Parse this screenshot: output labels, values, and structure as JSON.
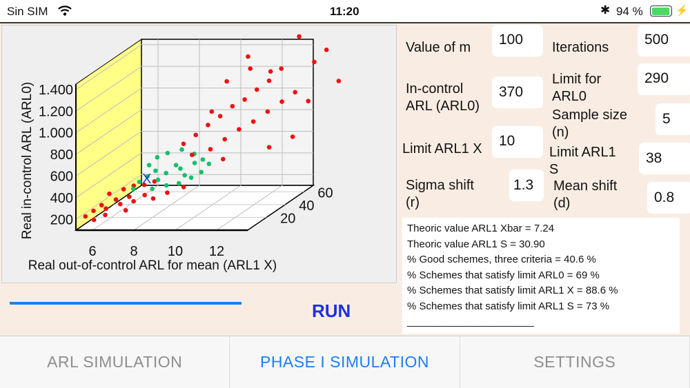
{
  "status": {
    "carrier": "Sin SIM",
    "time": "11:20",
    "battery": "94 %",
    "battery_level": 0.94
  },
  "form": {
    "value_m": {
      "label": "Value of m",
      "value": "100"
    },
    "iterations": {
      "label": "Iterations",
      "value": "500"
    },
    "arl0": {
      "label1": "In-control",
      "label2": "ARL (ARL0)",
      "value": "370"
    },
    "limit_arl0": {
      "label1": "Limit for",
      "label2": "ARL0",
      "value": "290"
    },
    "sample_size": {
      "label1": "Sample size",
      "label2": "(n)",
      "value": "5"
    },
    "limit_arl1x": {
      "label": "Limit ARL1 X",
      "value": "10"
    },
    "limit_arl1s": {
      "label1": "Limit  ARL1",
      "label2": "S",
      "value": "38"
    },
    "sigma_shift": {
      "label1": "Sigma shift",
      "label2": "(r)",
      "value": "1.3"
    },
    "mean_shift": {
      "label1": "Mean shift",
      "label2": "(d)",
      "value": "0.8"
    }
  },
  "results": [
    "Theoric value ARL1 Xbar = 7.24",
    "Theoric value ARL1 S = 30.90",
    "% Good schemes, three criteria = 40.6 %",
    "% Schemes that satisfy limit ARL0 = 69 %",
    "% Schemes that satisfy limit ARL1 X = 88.6 %",
    "% Schemes that satisfy limit ARL1 S = 73 %",
    "______________________"
  ],
  "progress": 1.0,
  "run_label": "RUN",
  "tabs": [
    "ARL SIMULATION",
    "PHASE I SIMULATION",
    "SETTINGS"
  ],
  "active_tab": 1,
  "chart_data": {
    "type": "scatter",
    "title": "",
    "xlabel": "Real out-of-control ARL for mean (ARL1 X)",
    "zlabel": "Real in-control ARL (ARL0)",
    "x_ticks": [
      "6",
      "8",
      "10",
      "12"
    ],
    "z_ticks": [
      "200",
      "400",
      "600",
      "800",
      "1.000",
      "1.200",
      "1.400"
    ],
    "depth_ticks": [
      "20",
      "40",
      "60"
    ],
    "marker_label": "X",
    "colors": {
      "good": "#13c06a",
      "bad": "#f01010",
      "marker": "#1f3fcf",
      "wall": "#ffff88"
    },
    "points": [
      [
        5.3,
        8,
        180,
        0
      ],
      [
        5.6,
        10,
        220,
        0
      ],
      [
        5.9,
        12,
        260,
        0
      ],
      [
        6.2,
        10,
        240,
        0
      ],
      [
        6.5,
        14,
        300,
        0
      ],
      [
        6.8,
        12,
        270,
        0
      ],
      [
        7.1,
        15,
        320,
        0
      ],
      [
        7.4,
        13,
        290,
        0
      ],
      [
        6.0,
        18,
        330,
        0
      ],
      [
        6.6,
        20,
        360,
        0
      ],
      [
        7.0,
        22,
        380,
        0
      ],
      [
        7.8,
        16,
        330,
        0
      ],
      [
        8.3,
        14,
        310,
        0
      ],
      [
        8.8,
        18,
        340,
        0
      ],
      [
        5.8,
        6,
        160,
        0
      ],
      [
        6.3,
        7,
        200,
        0
      ],
      [
        7.2,
        9,
        230,
        0
      ],
      [
        7.6,
        20,
        400,
        0
      ],
      [
        8.0,
        22,
        420,
        0
      ],
      [
        9.5,
        20,
        380,
        0
      ],
      [
        6.8,
        26,
        330,
        1
      ],
      [
        7.0,
        28,
        380,
        1
      ],
      [
        7.3,
        30,
        420,
        1
      ],
      [
        7.6,
        32,
        460,
        1
      ],
      [
        7.9,
        28,
        400,
        1
      ],
      [
        8.2,
        30,
        450,
        1
      ],
      [
        8.5,
        34,
        500,
        1
      ],
      [
        8.8,
        32,
        480,
        1
      ],
      [
        9.1,
        30,
        430,
        1
      ],
      [
        9.4,
        34,
        520,
        1
      ],
      [
        9.7,
        36,
        540,
        1
      ],
      [
        7.5,
        36,
        560,
        1
      ],
      [
        8.0,
        36,
        600,
        1
      ],
      [
        8.6,
        38,
        620,
        1
      ],
      [
        9.0,
        26,
        380,
        1
      ],
      [
        9.5,
        28,
        420,
        1
      ],
      [
        9.9,
        30,
        460,
        1
      ],
      [
        7.2,
        34,
        500,
        1
      ],
      [
        8.4,
        26,
        360,
        1
      ],
      [
        9.2,
        38,
        580,
        1
      ],
      [
        10.0,
        36,
        500,
        1
      ],
      [
        7.8,
        24,
        340,
        1
      ],
      [
        8.5,
        42,
        650,
        0
      ],
      [
        9.0,
        44,
        720,
        0
      ],
      [
        9.5,
        46,
        800,
        0
      ],
      [
        10.0,
        48,
        870,
        0
      ],
      [
        10.5,
        50,
        950,
        0
      ],
      [
        11.0,
        52,
        1000,
        0
      ],
      [
        11.5,
        54,
        1080,
        0
      ],
      [
        12.0,
        56,
        1150,
        0
      ],
      [
        12.5,
        58,
        1250,
        0
      ],
      [
        9.8,
        42,
        600,
        0
      ],
      [
        10.4,
        44,
        680,
        0
      ],
      [
        11.0,
        46,
        760,
        0
      ],
      [
        11.6,
        48,
        820,
        0
      ],
      [
        12.2,
        50,
        900,
        0
      ],
      [
        12.8,
        52,
        980,
        0
      ],
      [
        13.3,
        55,
        1050,
        0
      ],
      [
        14.0,
        60,
        1300,
        0
      ],
      [
        14.5,
        62,
        1400,
        0
      ],
      [
        13.0,
        66,
        1500,
        0
      ],
      [
        10.0,
        55,
        1150,
        0
      ],
      [
        11.0,
        58,
        1250,
        0
      ],
      [
        9.5,
        50,
        900,
        0
      ],
      [
        10.8,
        60,
        1350,
        0
      ],
      [
        12.5,
        45,
        600,
        0
      ],
      [
        13.5,
        48,
        680,
        0
      ],
      [
        9.0,
        40,
        560,
        0
      ],
      [
        10.5,
        40,
        520,
        0
      ],
      [
        11.8,
        62,
        1200,
        0
      ],
      [
        15.0,
        64,
        1100,
        0
      ],
      [
        13.8,
        58,
        950,
        0
      ]
    ]
  }
}
